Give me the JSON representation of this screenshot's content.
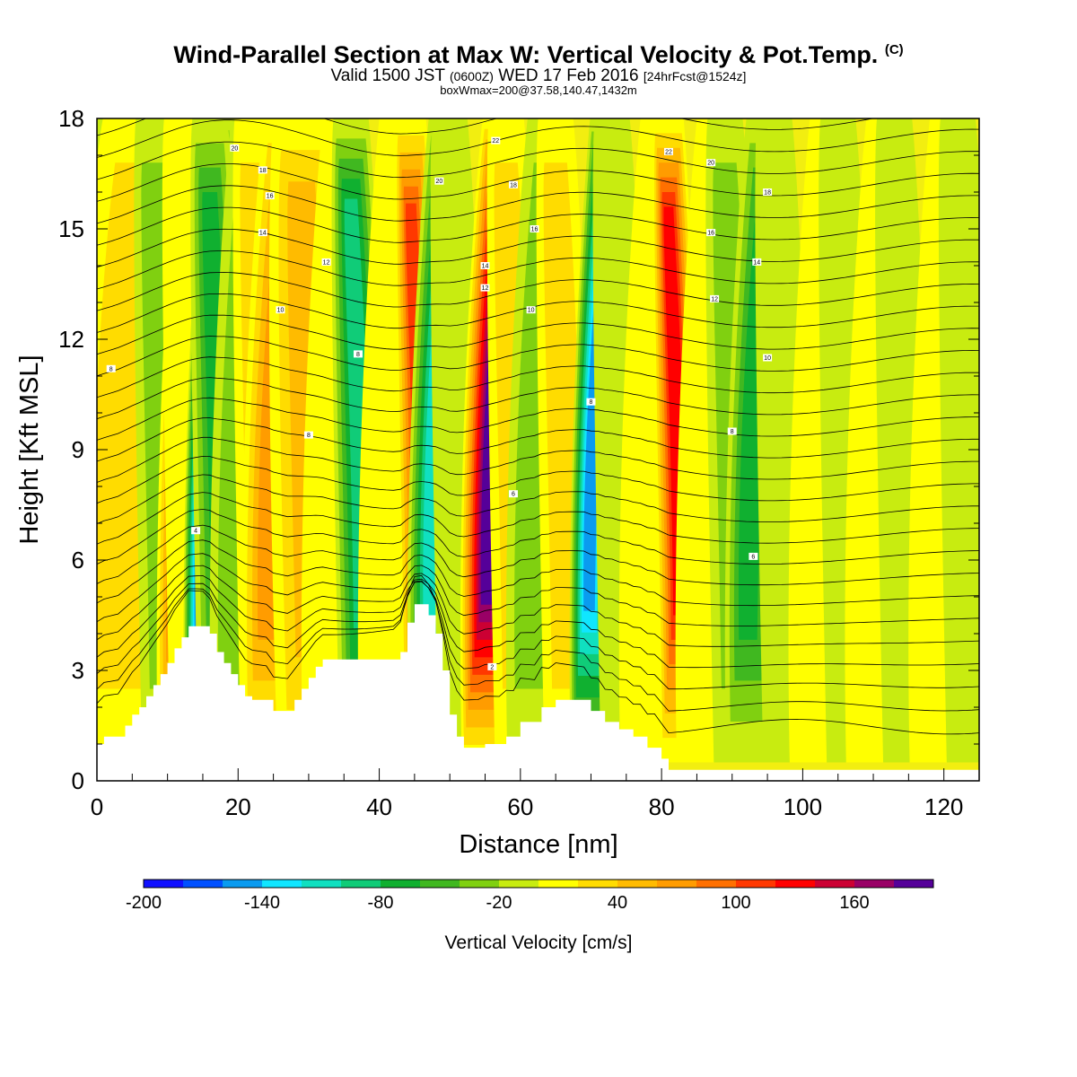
{
  "header": {
    "title": "Wind-Parallel Section at Max W: Vertical Velocity & Pot.Temp.",
    "title_tag": "(C)",
    "valid_prefix": "Valid 1500 JST",
    "valid_utc": "(0600Z)",
    "valid_date": "WED 17 Feb 2016",
    "forecast": "[24hrFcst@1524z]",
    "boxinfo": "boxWmax=200@37.58,140.47,1432m"
  },
  "chart_data": {
    "type": "heatmap",
    "xlabel": "Distance [nm]",
    "ylabel": "Height [Kft MSL]",
    "xlim": [
      0,
      125
    ],
    "ylim": [
      0,
      18
    ],
    "x_ticks": [
      0,
      20,
      40,
      60,
      80,
      100,
      120
    ],
    "y_ticks": [
      0,
      3,
      6,
      9,
      12,
      15,
      18
    ],
    "colorbar": {
      "title": "Vertical Velocity [cm/s]",
      "boundaries": [
        -200,
        -180,
        -160,
        -140,
        -120,
        -100,
        -80,
        -60,
        -40,
        -20,
        0,
        20,
        40,
        60,
        80,
        100,
        120,
        140,
        160,
        180,
        200
      ],
      "colors": [
        "#1010ff",
        "#0050ff",
        "#0a9bf0",
        "#10e6ff",
        "#10e0c0",
        "#10cc78",
        "#10b030",
        "#40b820",
        "#80d010",
        "#c8ec10",
        "#ffff00",
        "#ffdc00",
        "#ffbb00",
        "#ff9c00",
        "#ff7000",
        "#ff3800",
        "#ff0000",
        "#cc0033",
        "#990066",
        "#550099"
      ],
      "tick_labels": [
        -200,
        -140,
        -80,
        -20,
        40,
        100,
        160
      ]
    },
    "updraft_columns": [
      {
        "x": 2,
        "value": -40,
        "width": 3
      },
      {
        "x": 4,
        "value": 40,
        "width": 6
      },
      {
        "x": 9,
        "value": -30,
        "width": 3
      },
      {
        "x": 12,
        "value": 90,
        "width": 2.5
      },
      {
        "x": 13,
        "value": 20,
        "width": 3
      },
      {
        "x": 15.5,
        "value": -180,
        "width": 2.2
      },
      {
        "x": 17,
        "value": -70,
        "width": 3
      },
      {
        "x": 20,
        "value": -40,
        "width": 3
      },
      {
        "x": 23,
        "value": 40,
        "width": 3
      },
      {
        "x": 25,
        "value": 70,
        "width": 3.5
      },
      {
        "x": 30,
        "value": 60,
        "width": 5
      },
      {
        "x": 33,
        "value": 20,
        "width": 3
      },
      {
        "x": 37,
        "value": -100,
        "width": 3
      },
      {
        "x": 41,
        "value": 20,
        "width": 3
      },
      {
        "x": 45.5,
        "value": 110,
        "width": 2.5
      },
      {
        "x": 48,
        "value": -110,
        "width": 3
      },
      {
        "x": 51,
        "value": -20,
        "width": 3
      },
      {
        "x": 56,
        "value": 190,
        "width": 3.5
      },
      {
        "x": 59,
        "value": 40,
        "width": 3
      },
      {
        "x": 62,
        "value": -40,
        "width": 3
      },
      {
        "x": 66,
        "value": 30,
        "width": 3
      },
      {
        "x": 70.5,
        "value": -150,
        "width": 2.5
      },
      {
        "x": 74,
        "value": -20,
        "width": 3
      },
      {
        "x": 78,
        "value": 20,
        "width": 3
      },
      {
        "x": 82,
        "value": 130,
        "width": 2.5
      },
      {
        "x": 86,
        "value": 20,
        "width": 3
      },
      {
        "x": 90,
        "value": -40,
        "width": 3
      },
      {
        "x": 93,
        "value": -70,
        "width": 3
      },
      {
        "x": 97,
        "value": -20,
        "width": 3
      },
      {
        "x": 102,
        "value": 20,
        "width": 3
      },
      {
        "x": 106,
        "value": -10,
        "width": 3
      },
      {
        "x": 110,
        "value": 20,
        "width": 3
      },
      {
        "x": 114,
        "value": -20,
        "width": 3
      },
      {
        "x": 119,
        "value": 20,
        "width": 3
      },
      {
        "x": 123,
        "value": -20,
        "width": 3
      }
    ],
    "terrain": [
      [
        0,
        1.0
      ],
      [
        1,
        1.0
      ],
      [
        1,
        1.2
      ],
      [
        4,
        1.2
      ],
      [
        4,
        1.5
      ],
      [
        5,
        1.5
      ],
      [
        5,
        1.8
      ],
      [
        6,
        1.8
      ],
      [
        6,
        2.0
      ],
      [
        7,
        2.0
      ],
      [
        7,
        2.3
      ],
      [
        8,
        2.3
      ],
      [
        8,
        2.6
      ],
      [
        9,
        2.6
      ],
      [
        9,
        2.9
      ],
      [
        10,
        2.9
      ],
      [
        10,
        3.2
      ],
      [
        11,
        3.2
      ],
      [
        11,
        3.6
      ],
      [
        12,
        3.6
      ],
      [
        12,
        3.9
      ],
      [
        13,
        3.9
      ],
      [
        13,
        4.2
      ],
      [
        16,
        4.2
      ],
      [
        16,
        4.0
      ],
      [
        17,
        4.0
      ],
      [
        17,
        3.5
      ],
      [
        18,
        3.5
      ],
      [
        18,
        3.2
      ],
      [
        19,
        3.2
      ],
      [
        19,
        2.9
      ],
      [
        20,
        2.9
      ],
      [
        20,
        2.6
      ],
      [
        21,
        2.6
      ],
      [
        21,
        2.3
      ],
      [
        22,
        2.3
      ],
      [
        22,
        2.2
      ],
      [
        25,
        2.2
      ],
      [
        25,
        1.9
      ],
      [
        28,
        1.9
      ],
      [
        28,
        2.2
      ],
      [
        29,
        2.2
      ],
      [
        29,
        2.5
      ],
      [
        30,
        2.5
      ],
      [
        30,
        2.8
      ],
      [
        31,
        2.8
      ],
      [
        31,
        3.1
      ],
      [
        32,
        3.1
      ],
      [
        32,
        3.3
      ],
      [
        43,
        3.3
      ],
      [
        43,
        3.5
      ],
      [
        44,
        3.5
      ],
      [
        44,
        4.3
      ],
      [
        45,
        4.3
      ],
      [
        45,
        4.8
      ],
      [
        47,
        4.8
      ],
      [
        47,
        4.5
      ],
      [
        48,
        4.5
      ],
      [
        48,
        4.0
      ],
      [
        49,
        4.0
      ],
      [
        49,
        3.0
      ],
      [
        50,
        3.0
      ],
      [
        50,
        1.8
      ],
      [
        51,
        1.8
      ],
      [
        51,
        1.2
      ],
      [
        52,
        1.2
      ],
      [
        52,
        0.9
      ],
      [
        55,
        0.9
      ],
      [
        55,
        1.0
      ],
      [
        58,
        1.0
      ],
      [
        58,
        1.2
      ],
      [
        60,
        1.2
      ],
      [
        60,
        1.6
      ],
      [
        63,
        1.6
      ],
      [
        63,
        2.0
      ],
      [
        65,
        2.0
      ],
      [
        65,
        2.2
      ],
      [
        70,
        2.2
      ],
      [
        70,
        1.9
      ],
      [
        72,
        1.9
      ],
      [
        72,
        1.6
      ],
      [
        74,
        1.6
      ],
      [
        74,
        1.4
      ],
      [
        76,
        1.4
      ],
      [
        76,
        1.2
      ],
      [
        78,
        1.2
      ],
      [
        78,
        0.9
      ],
      [
        80,
        0.9
      ],
      [
        80,
        0.6
      ],
      [
        81,
        0.6
      ],
      [
        81,
        0.3
      ],
      [
        125,
        0.3
      ]
    ],
    "contour_labels": [
      {
        "text": "20",
        "x": 19.5,
        "y": 17.2
      },
      {
        "text": "18",
        "x": 23.5,
        "y": 16.6
      },
      {
        "text": "16",
        "x": 24.5,
        "y": 15.9
      },
      {
        "text": "14",
        "x": 23.5,
        "y": 14.9
      },
      {
        "text": "12",
        "x": 32.5,
        "y": 14.1
      },
      {
        "text": "10",
        "x": 26,
        "y": 12.8
      },
      {
        "text": "8",
        "x": 2,
        "y": 11.2
      },
      {
        "text": "8",
        "x": 37,
        "y": 11.6
      },
      {
        "text": "8",
        "x": 30,
        "y": 9.4
      },
      {
        "text": "4",
        "x": 14,
        "y": 6.8
      },
      {
        "text": "20",
        "x": 48.5,
        "y": 16.3
      },
      {
        "text": "22",
        "x": 56.5,
        "y": 17.4
      },
      {
        "text": "18",
        "x": 59,
        "y": 16.2
      },
      {
        "text": "16",
        "x": 62,
        "y": 15.0
      },
      {
        "text": "14",
        "x": 55,
        "y": 14.0
      },
      {
        "text": "12",
        "x": 55,
        "y": 13.4
      },
      {
        "text": "10",
        "x": 61.5,
        "y": 12.8
      },
      {
        "text": "8",
        "x": 70,
        "y": 10.3
      },
      {
        "text": "6",
        "x": 59,
        "y": 7.8
      },
      {
        "text": "2",
        "x": 56,
        "y": 3.1
      },
      {
        "text": "22",
        "x": 81,
        "y": 17.1
      },
      {
        "text": "20",
        "x": 87,
        "y": 16.8
      },
      {
        "text": "18",
        "x": 95,
        "y": 16.0
      },
      {
        "text": "16",
        "x": 87,
        "y": 14.9
      },
      {
        "text": "14",
        "x": 93.5,
        "y": 14.1
      },
      {
        "text": "12",
        "x": 87.5,
        "y": 13.1
      },
      {
        "text": "10",
        "x": 95,
        "y": 11.5
      },
      {
        "text": "8",
        "x": 90,
        "y": 9.5
      },
      {
        "text": "6",
        "x": 93,
        "y": 6.1
      }
    ]
  }
}
